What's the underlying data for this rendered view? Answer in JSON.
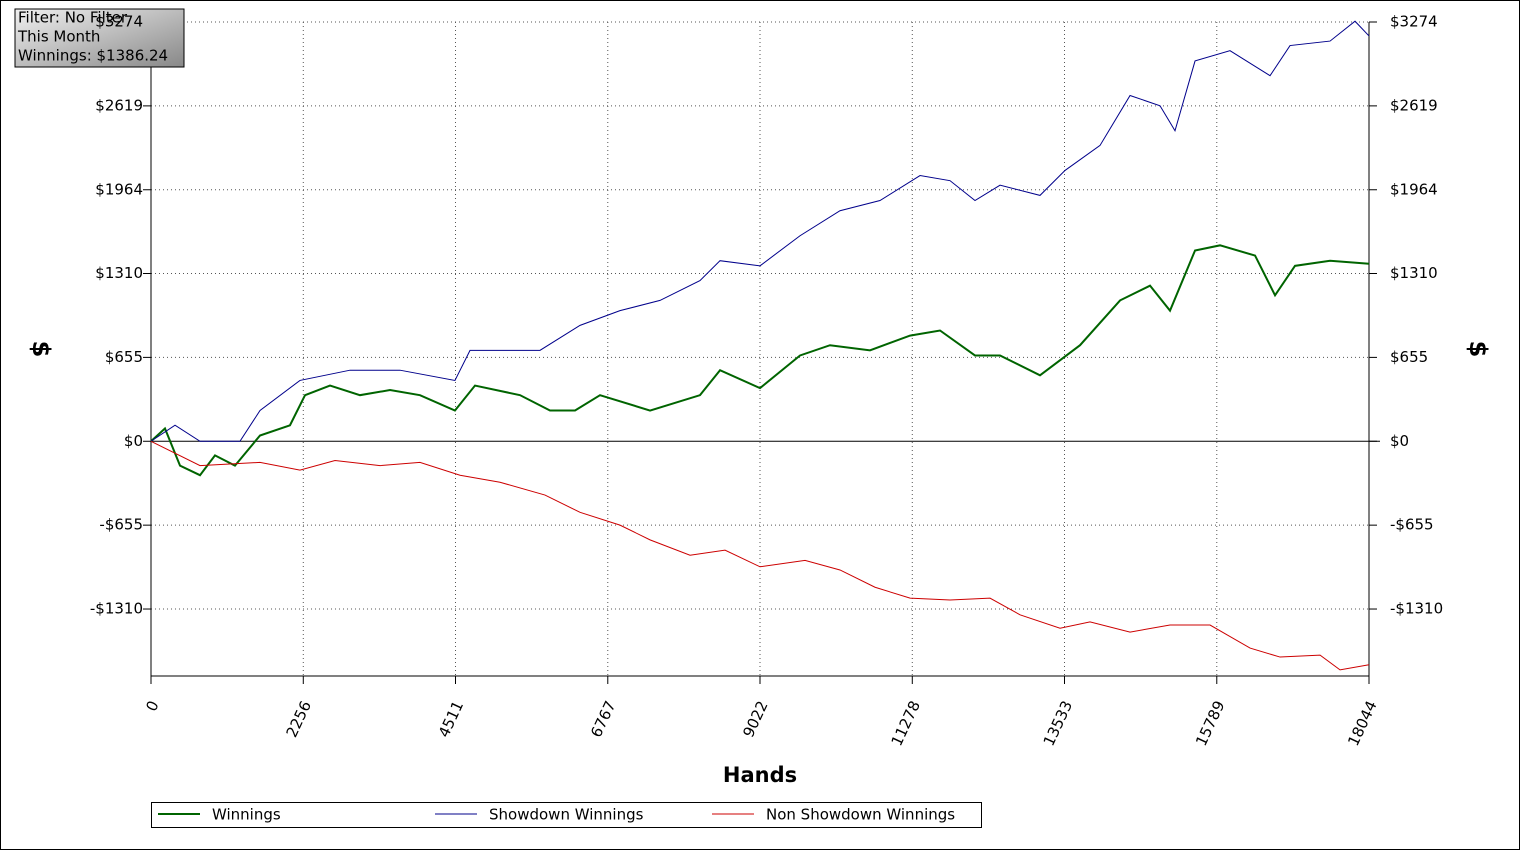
{
  "info": {
    "lines": [
      "Filter: No Filter",
      "This Month",
      "Winnings: $1386.24"
    ]
  },
  "chart_data": {
    "type": "line",
    "x_label": "Hands",
    "y_label": "$",
    "y2_label": "$",
    "xlim": [
      0,
      18044
    ],
    "xticks": [
      0,
      2256,
      4511,
      6767,
      9022,
      11278,
      13533,
      15789,
      18044
    ],
    "ylim": [
      -1833,
      3274
    ],
    "yticks": [
      {
        "value": 3274,
        "label": "$3274"
      },
      {
        "value": 2619,
        "label": "$2619"
      },
      {
        "value": 1964,
        "label": "$1964"
      },
      {
        "value": 1310,
        "label": "$1310"
      },
      {
        "value": 655,
        "label": "$655"
      },
      {
        "value": 0,
        "label": "$0"
      },
      {
        "value": -655,
        "label": "-$655"
      },
      {
        "value": -1310,
        "label": "-$1310"
      }
    ],
    "grid": true,
    "series": [
      {
        "name": "Winnings",
        "color": "#006400",
        "x": [
          0,
          207,
          430,
          726,
          948,
          1244,
          1615,
          2059,
          2282,
          2652,
          3096,
          3541,
          3985,
          4503,
          4800,
          5467,
          5911,
          6282,
          6652,
          7393,
          8133,
          8430,
          9022,
          9615,
          10059,
          10652,
          11245,
          11689,
          12207,
          12578,
          13170,
          13763,
          14356,
          14800,
          15096,
          15467,
          15837,
          16356,
          16652,
          16948,
          17467,
          18044
        ],
        "values": [
          0,
          100,
          -190,
          -265,
          -110,
          -190,
          45,
          125,
          360,
          435,
          360,
          400,
          360,
          240,
          435,
          360,
          240,
          240,
          360,
          240,
          360,
          555,
          415,
          670,
          750,
          710,
          825,
          865,
          670,
          670,
          515,
          750,
          1100,
          1215,
          1020,
          1490,
          1530,
          1450,
          1140,
          1370,
          1410,
          1386
        ]
      },
      {
        "name": "Showdown Winnings",
        "color": "#00008b",
        "x": [
          0,
          356,
          726,
          1318,
          1615,
          2207,
          2948,
          3689,
          4503,
          4726,
          5763,
          6356,
          6948,
          7541,
          8133,
          8430,
          9022,
          9615,
          10207,
          10800,
          11393,
          11837,
          12207,
          12578,
          13170,
          13541,
          14059,
          14504,
          14948,
          15170,
          15467,
          15985,
          16578,
          16874,
          17467,
          17837,
          18044
        ],
        "values": [
          0,
          125,
          0,
          0,
          240,
          475,
          555,
          555,
          475,
          710,
          710,
          905,
          1020,
          1100,
          1255,
          1410,
          1370,
          1605,
          1800,
          1880,
          2075,
          2035,
          1880,
          2000,
          1920,
          2115,
          2310,
          2700,
          2620,
          2425,
          2970,
          3050,
          2855,
          3090,
          3125,
          3280,
          3165
        ]
      },
      {
        "name": "Non Showdown Winnings",
        "color": "#cc0000",
        "x": [
          0,
          726,
          1615,
          2207,
          2726,
          3393,
          3985,
          4578,
          5170,
          5837,
          6356,
          6948,
          7393,
          7985,
          8504,
          9022,
          9689,
          10207,
          10726,
          11245,
          11837,
          12430,
          12874,
          13467,
          13911,
          14504,
          15096,
          15689,
          16282,
          16726,
          17319,
          17615,
          18044
        ],
        "values": [
          0,
          -190,
          -165,
          -225,
          -150,
          -190,
          -165,
          -265,
          -320,
          -420,
          -555,
          -655,
          -770,
          -890,
          -850,
          -980,
          -930,
          -1005,
          -1140,
          -1225,
          -1240,
          -1225,
          -1355,
          -1460,
          -1410,
          -1490,
          -1435,
          -1435,
          -1615,
          -1685,
          -1670,
          -1785,
          -1745
        ]
      }
    ]
  }
}
